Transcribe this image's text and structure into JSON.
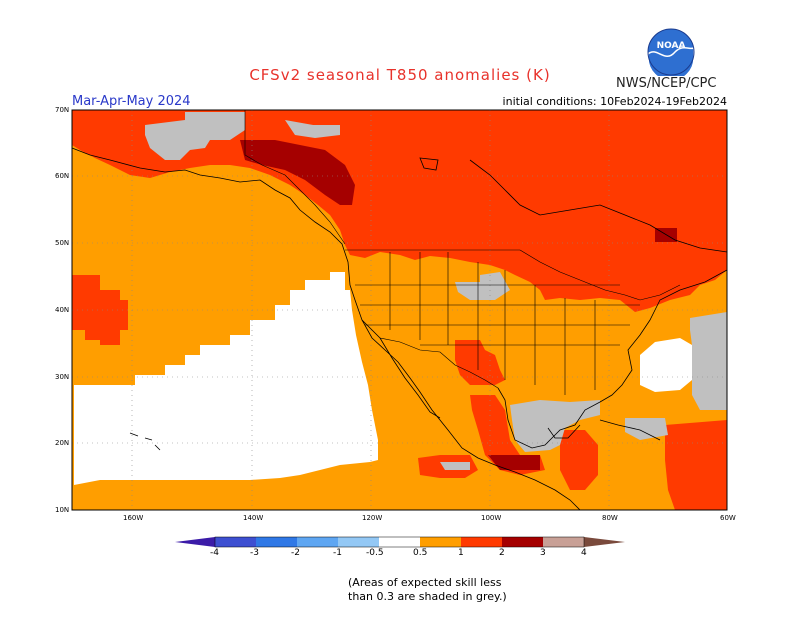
{
  "header": {
    "title": "CFSv2 seasonal T850 anomalies (K)",
    "agency": "NWS/NCEP/CPC",
    "season": "Mar-Apr-May 2024",
    "initial_conditions": "initial conditions: 10Feb2024-19Feb2024",
    "logo_text": "NOAA"
  },
  "axes": {
    "lat_labels": [
      "70N",
      "60N",
      "50N",
      "40N",
      "30N",
      "20N",
      "10N"
    ],
    "lon_labels": [
      "160W",
      "140W",
      "120W",
      "100W",
      "80W",
      "60W"
    ]
  },
  "colorbar": {
    "tick_labels": [
      "-4",
      "-3",
      "-2",
      "-1",
      "-0.5",
      "0.5",
      "1",
      "2",
      "3",
      "4"
    ],
    "colors": [
      "#3b1ba8",
      "#3d4fd1",
      "#2f78e6",
      "#5ea6f2",
      "#93c8f5",
      "#ffffff",
      "#ff9e00",
      "#ff3a00",
      "#a50000",
      "#c8a096",
      "#7a4a3c"
    ]
  },
  "note": {
    "line1": "(Areas of expected skill less",
    "line2": "than 0.3 are shaded in grey.)"
  },
  "map_colors": {
    "orange": "#ff9e00",
    "red": "#ff3a00",
    "darkred": "#a50000",
    "grey": "#c0c0c0",
    "white": "#ffffff"
  }
}
